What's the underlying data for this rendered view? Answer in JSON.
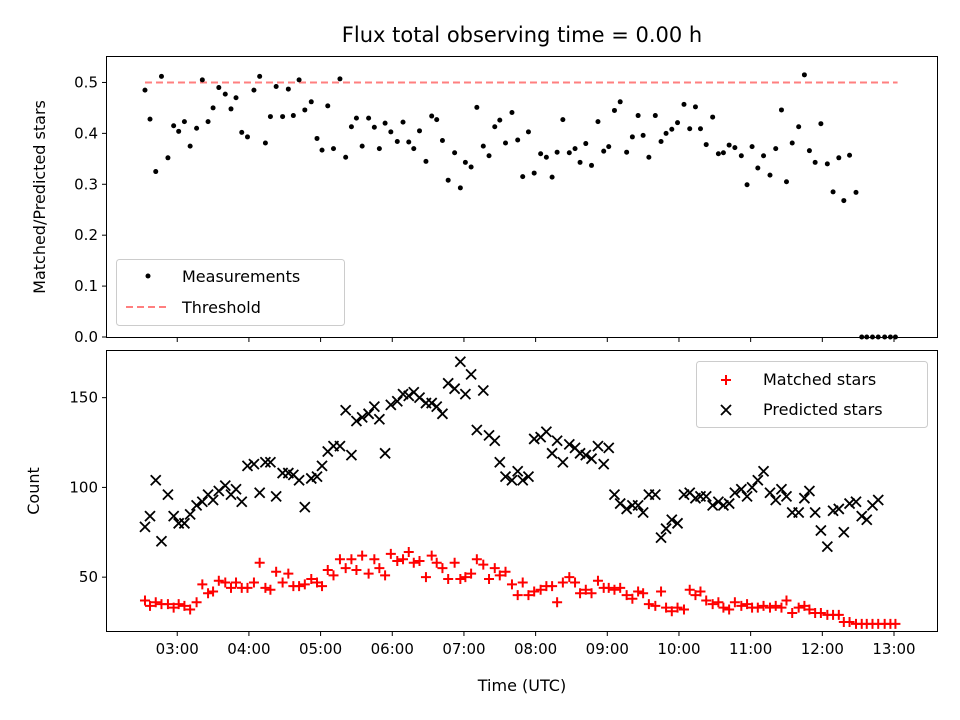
{
  "chart_data": [
    {
      "type": "scatter",
      "title": "Flux total observing time = 0.00 h",
      "xlabel": "",
      "ylabel": "Matched/Predicted stars",
      "xlim": [
        2.02,
        13.6
      ],
      "ylim": [
        0.0,
        0.55
      ],
      "yticks": [
        0.0,
        0.1,
        0.2,
        0.3,
        0.4,
        0.5
      ],
      "xtick_values": [
        3,
        4,
        5,
        6,
        7,
        8,
        9,
        10,
        11,
        12,
        13
      ],
      "legend_position": "lower-left",
      "threshold": {
        "name": "Threshold",
        "value": 0.5,
        "x_range": [
          2.55,
          13.05
        ],
        "color": "#ff7f7f"
      },
      "series": [
        {
          "name": "Measurements",
          "color": "#000000",
          "x": [
            2.55,
            2.62,
            2.7,
            2.78,
            2.87,
            2.95,
            3.02,
            3.1,
            3.18,
            3.27,
            3.35,
            3.43,
            3.5,
            3.58,
            3.67,
            3.75,
            3.82,
            3.9,
            3.98,
            4.07,
            4.15,
            4.23,
            4.3,
            4.38,
            4.47,
            4.55,
            4.62,
            4.7,
            4.78,
            4.87,
            4.95,
            5.02,
            5.1,
            5.18,
            5.27,
            5.35,
            5.43,
            5.5,
            5.58,
            5.67,
            5.75,
            5.82,
            5.9,
            5.98,
            6.07,
            6.15,
            6.23,
            6.3,
            6.38,
            6.47,
            6.55,
            6.62,
            6.7,
            6.78,
            6.87,
            6.95,
            7.02,
            7.1,
            7.18,
            7.27,
            7.35,
            7.43,
            7.5,
            7.58,
            7.67,
            7.75,
            7.82,
            7.9,
            7.98,
            8.07,
            8.15,
            8.23,
            8.3,
            8.38,
            8.47,
            8.55,
            8.62,
            8.7,
            8.78,
            8.87,
            8.95,
            9.02,
            9.1,
            9.18,
            9.27,
            9.35,
            9.43,
            9.5,
            9.58,
            9.67,
            9.75,
            9.82,
            9.9,
            9.98,
            10.07,
            10.15,
            10.23,
            10.3,
            10.38,
            10.47,
            10.55,
            10.62,
            10.7,
            10.78,
            10.87,
            10.95,
            11.02,
            11.1,
            11.18,
            11.27,
            11.35,
            11.43,
            11.5,
            11.58,
            11.67,
            11.75,
            11.82,
            11.9,
            11.98,
            12.07,
            12.15,
            12.23,
            12.3,
            12.38,
            12.47,
            12.55,
            12.62,
            12.7,
            12.78,
            12.87,
            12.95,
            13.02
          ],
          "y": [
            0.485,
            0.428,
            0.325,
            0.512,
            0.352,
            0.415,
            0.404,
            0.423,
            0.375,
            0.41,
            0.505,
            0.423,
            0.45,
            0.49,
            0.477,
            0.448,
            0.47,
            0.402,
            0.393,
            0.485,
            0.512,
            0.381,
            0.433,
            0.492,
            0.433,
            0.487,
            0.435,
            0.505,
            0.446,
            0.462,
            0.39,
            0.367,
            0.454,
            0.37,
            0.507,
            0.353,
            0.413,
            0.43,
            0.375,
            0.43,
            0.412,
            0.37,
            0.42,
            0.403,
            0.384,
            0.422,
            0.383,
            0.37,
            0.405,
            0.345,
            0.434,
            0.427,
            0.386,
            0.308,
            0.362,
            0.293,
            0.343,
            0.334,
            0.451,
            0.375,
            0.356,
            0.413,
            0.426,
            0.381,
            0.441,
            0.387,
            0.315,
            0.403,
            0.322,
            0.36,
            0.353,
            0.314,
            0.363,
            0.427,
            0.362,
            0.37,
            0.343,
            0.38,
            0.337,
            0.423,
            0.365,
            0.374,
            0.445,
            0.462,
            0.363,
            0.393,
            0.435,
            0.396,
            0.353,
            0.435,
            0.384,
            0.4,
            0.408,
            0.421,
            0.457,
            0.409,
            0.452,
            0.409,
            0.378,
            0.432,
            0.36,
            0.362,
            0.377,
            0.372,
            0.356,
            0.299,
            0.374,
            0.332,
            0.356,
            0.318,
            0.37,
            0.446,
            0.305,
            0.381,
            0.413,
            0.515,
            0.366,
            0.343,
            0.419,
            0.34,
            0.285,
            0.352,
            0.268,
            0.357,
            0.284,
            0.0,
            0.0,
            0.0,
            0.0,
            0.0,
            0.0,
            0.0
          ]
        }
      ]
    },
    {
      "type": "scatter",
      "title": "",
      "xlabel": "Time (UTC)",
      "ylabel": "Count",
      "xlim": [
        2.02,
        13.6
      ],
      "ylim": [
        20,
        176
      ],
      "yticks": [
        50,
        100,
        150
      ],
      "xtick_labels": [
        "03:00",
        "04:00",
        "05:00",
        "06:00",
        "07:00",
        "08:00",
        "09:00",
        "10:00",
        "11:00",
        "12:00",
        "13:00"
      ],
      "xtick_values": [
        3,
        4,
        5,
        6,
        7,
        8,
        9,
        10,
        11,
        12,
        13
      ],
      "legend_position": "top-right",
      "series": [
        {
          "name": "Matched stars",
          "color": "#ff0000",
          "marker": "plus",
          "x": [
            2.55,
            2.62,
            2.7,
            2.78,
            2.87,
            2.95,
            3.02,
            3.1,
            3.18,
            3.27,
            3.35,
            3.43,
            3.5,
            3.58,
            3.67,
            3.75,
            3.82,
            3.9,
            3.98,
            4.07,
            4.15,
            4.23,
            4.3,
            4.38,
            4.47,
            4.55,
            4.62,
            4.7,
            4.78,
            4.87,
            4.95,
            5.02,
            5.1,
            5.18,
            5.27,
            5.35,
            5.43,
            5.5,
            5.58,
            5.67,
            5.75,
            5.82,
            5.9,
            5.98,
            6.07,
            6.15,
            6.23,
            6.3,
            6.38,
            6.47,
            6.55,
            6.62,
            6.7,
            6.78,
            6.87,
            6.95,
            7.02,
            7.1,
            7.18,
            7.27,
            7.35,
            7.43,
            7.5,
            7.58,
            7.67,
            7.75,
            7.82,
            7.9,
            7.98,
            8.07,
            8.15,
            8.23,
            8.3,
            8.38,
            8.47,
            8.55,
            8.62,
            8.7,
            8.78,
            8.87,
            8.95,
            9.02,
            9.1,
            9.18,
            9.27,
            9.35,
            9.43,
            9.5,
            9.58,
            9.67,
            9.75,
            9.82,
            9.9,
            9.98,
            10.07,
            10.15,
            10.23,
            10.3,
            10.38,
            10.47,
            10.55,
            10.62,
            10.7,
            10.78,
            10.87,
            10.95,
            11.02,
            11.1,
            11.18,
            11.27,
            11.35,
            11.43,
            11.5,
            11.58,
            11.67,
            11.75,
            11.82,
            11.9,
            11.98,
            12.07,
            12.15,
            12.23,
            12.3,
            12.38,
            12.47,
            12.55,
            12.62,
            12.7,
            12.78,
            12.87,
            12.95,
            13.02
          ],
          "y": [
            37,
            34,
            36,
            35,
            35,
            33,
            35,
            34,
            32,
            36,
            46,
            41,
            42,
            48,
            47,
            44,
            47,
            44,
            44,
            47,
            58,
            44,
            43,
            53,
            47,
            52,
            45,
            45,
            46,
            49,
            47,
            45,
            54,
            51,
            60,
            55,
            60,
            54,
            62,
            52,
            60,
            55,
            51,
            63,
            59,
            60,
            64,
            58,
            59,
            50,
            62,
            58,
            55,
            49,
            58,
            49,
            50,
            52,
            60,
            57,
            49,
            55,
            51,
            53,
            46,
            40,
            47,
            40,
            42,
            43,
            45,
            45,
            36,
            47,
            50,
            47,
            41,
            43,
            41,
            48,
            44,
            44,
            43,
            44,
            40,
            38,
            42,
            41,
            35,
            34,
            42,
            33,
            31,
            33,
            32,
            43,
            40,
            42,
            37,
            35,
            36,
            33,
            32,
            36,
            34,
            35,
            33,
            33,
            34,
            33,
            34,
            33,
            37,
            30,
            33,
            34,
            32,
            30,
            30,
            29,
            29,
            29,
            25,
            25,
            24,
            24,
            24,
            24,
            24,
            24,
            24,
            24
          ]
        },
        {
          "name": "Predicted stars",
          "color": "#000000",
          "marker": "x",
          "x": [
            2.55,
            2.62,
            2.7,
            2.78,
            2.87,
            2.95,
            3.02,
            3.1,
            3.18,
            3.27,
            3.35,
            3.43,
            3.5,
            3.58,
            3.67,
            3.75,
            3.82,
            3.9,
            3.98,
            4.07,
            4.15,
            4.23,
            4.3,
            4.38,
            4.47,
            4.55,
            4.62,
            4.7,
            4.78,
            4.87,
            4.95,
            5.02,
            5.1,
            5.18,
            5.27,
            5.35,
            5.43,
            5.5,
            5.58,
            5.67,
            5.75,
            5.82,
            5.9,
            5.98,
            6.07,
            6.15,
            6.23,
            6.3,
            6.38,
            6.47,
            6.55,
            6.62,
            6.7,
            6.78,
            6.87,
            6.95,
            7.02,
            7.1,
            7.18,
            7.27,
            7.35,
            7.43,
            7.5,
            7.58,
            7.67,
            7.75,
            7.82,
            7.9,
            7.98,
            8.07,
            8.15,
            8.23,
            8.3,
            8.38,
            8.47,
            8.55,
            8.62,
            8.7,
            8.78,
            8.87,
            8.95,
            9.02,
            9.1,
            9.18,
            9.27,
            9.35,
            9.43,
            9.5,
            9.58,
            9.67,
            9.75,
            9.82,
            9.9,
            9.98,
            10.07,
            10.15,
            10.23,
            10.3,
            10.38,
            10.47,
            10.55,
            10.62,
            10.7,
            10.78,
            10.87,
            10.95,
            11.02,
            11.1,
            11.18,
            11.27,
            11.35,
            11.43,
            11.5,
            11.58,
            11.67,
            11.75,
            11.82,
            11.9,
            11.98,
            12.07,
            12.15,
            12.23,
            12.3,
            12.38,
            12.47,
            12.55,
            12.62,
            12.7,
            12.78
          ],
          "y": [
            78,
            84,
            104,
            70,
            96,
            84,
            80,
            80,
            85,
            90,
            92,
            96,
            93,
            98,
            101,
            96,
            99,
            92,
            112,
            113,
            97,
            114,
            114,
            95,
            108,
            108,
            107,
            104,
            89,
            105,
            106,
            112,
            120,
            123,
            123,
            143,
            118,
            137,
            139,
            141,
            145,
            138,
            119,
            146,
            148,
            152,
            151,
            153,
            150,
            147,
            147,
            145,
            141,
            158,
            155,
            170,
            152,
            163,
            132,
            154,
            129,
            126,
            114,
            106,
            104,
            109,
            104,
            106,
            127,
            128,
            131,
            119,
            126,
            114,
            124,
            122,
            119,
            118,
            116,
            123,
            113,
            122,
            96,
            91,
            88,
            90,
            90,
            86,
            96,
            96,
            72,
            77,
            82,
            80,
            96,
            97,
            94,
            95,
            95,
            90,
            92,
            90,
            91,
            97,
            99,
            95,
            100,
            104,
            109,
            97,
            93,
            99,
            95,
            86,
            86,
            94,
            98,
            86,
            76,
            67,
            87,
            88,
            75,
            91,
            92,
            84,
            82,
            90,
            93
          ]
        }
      ]
    }
  ]
}
